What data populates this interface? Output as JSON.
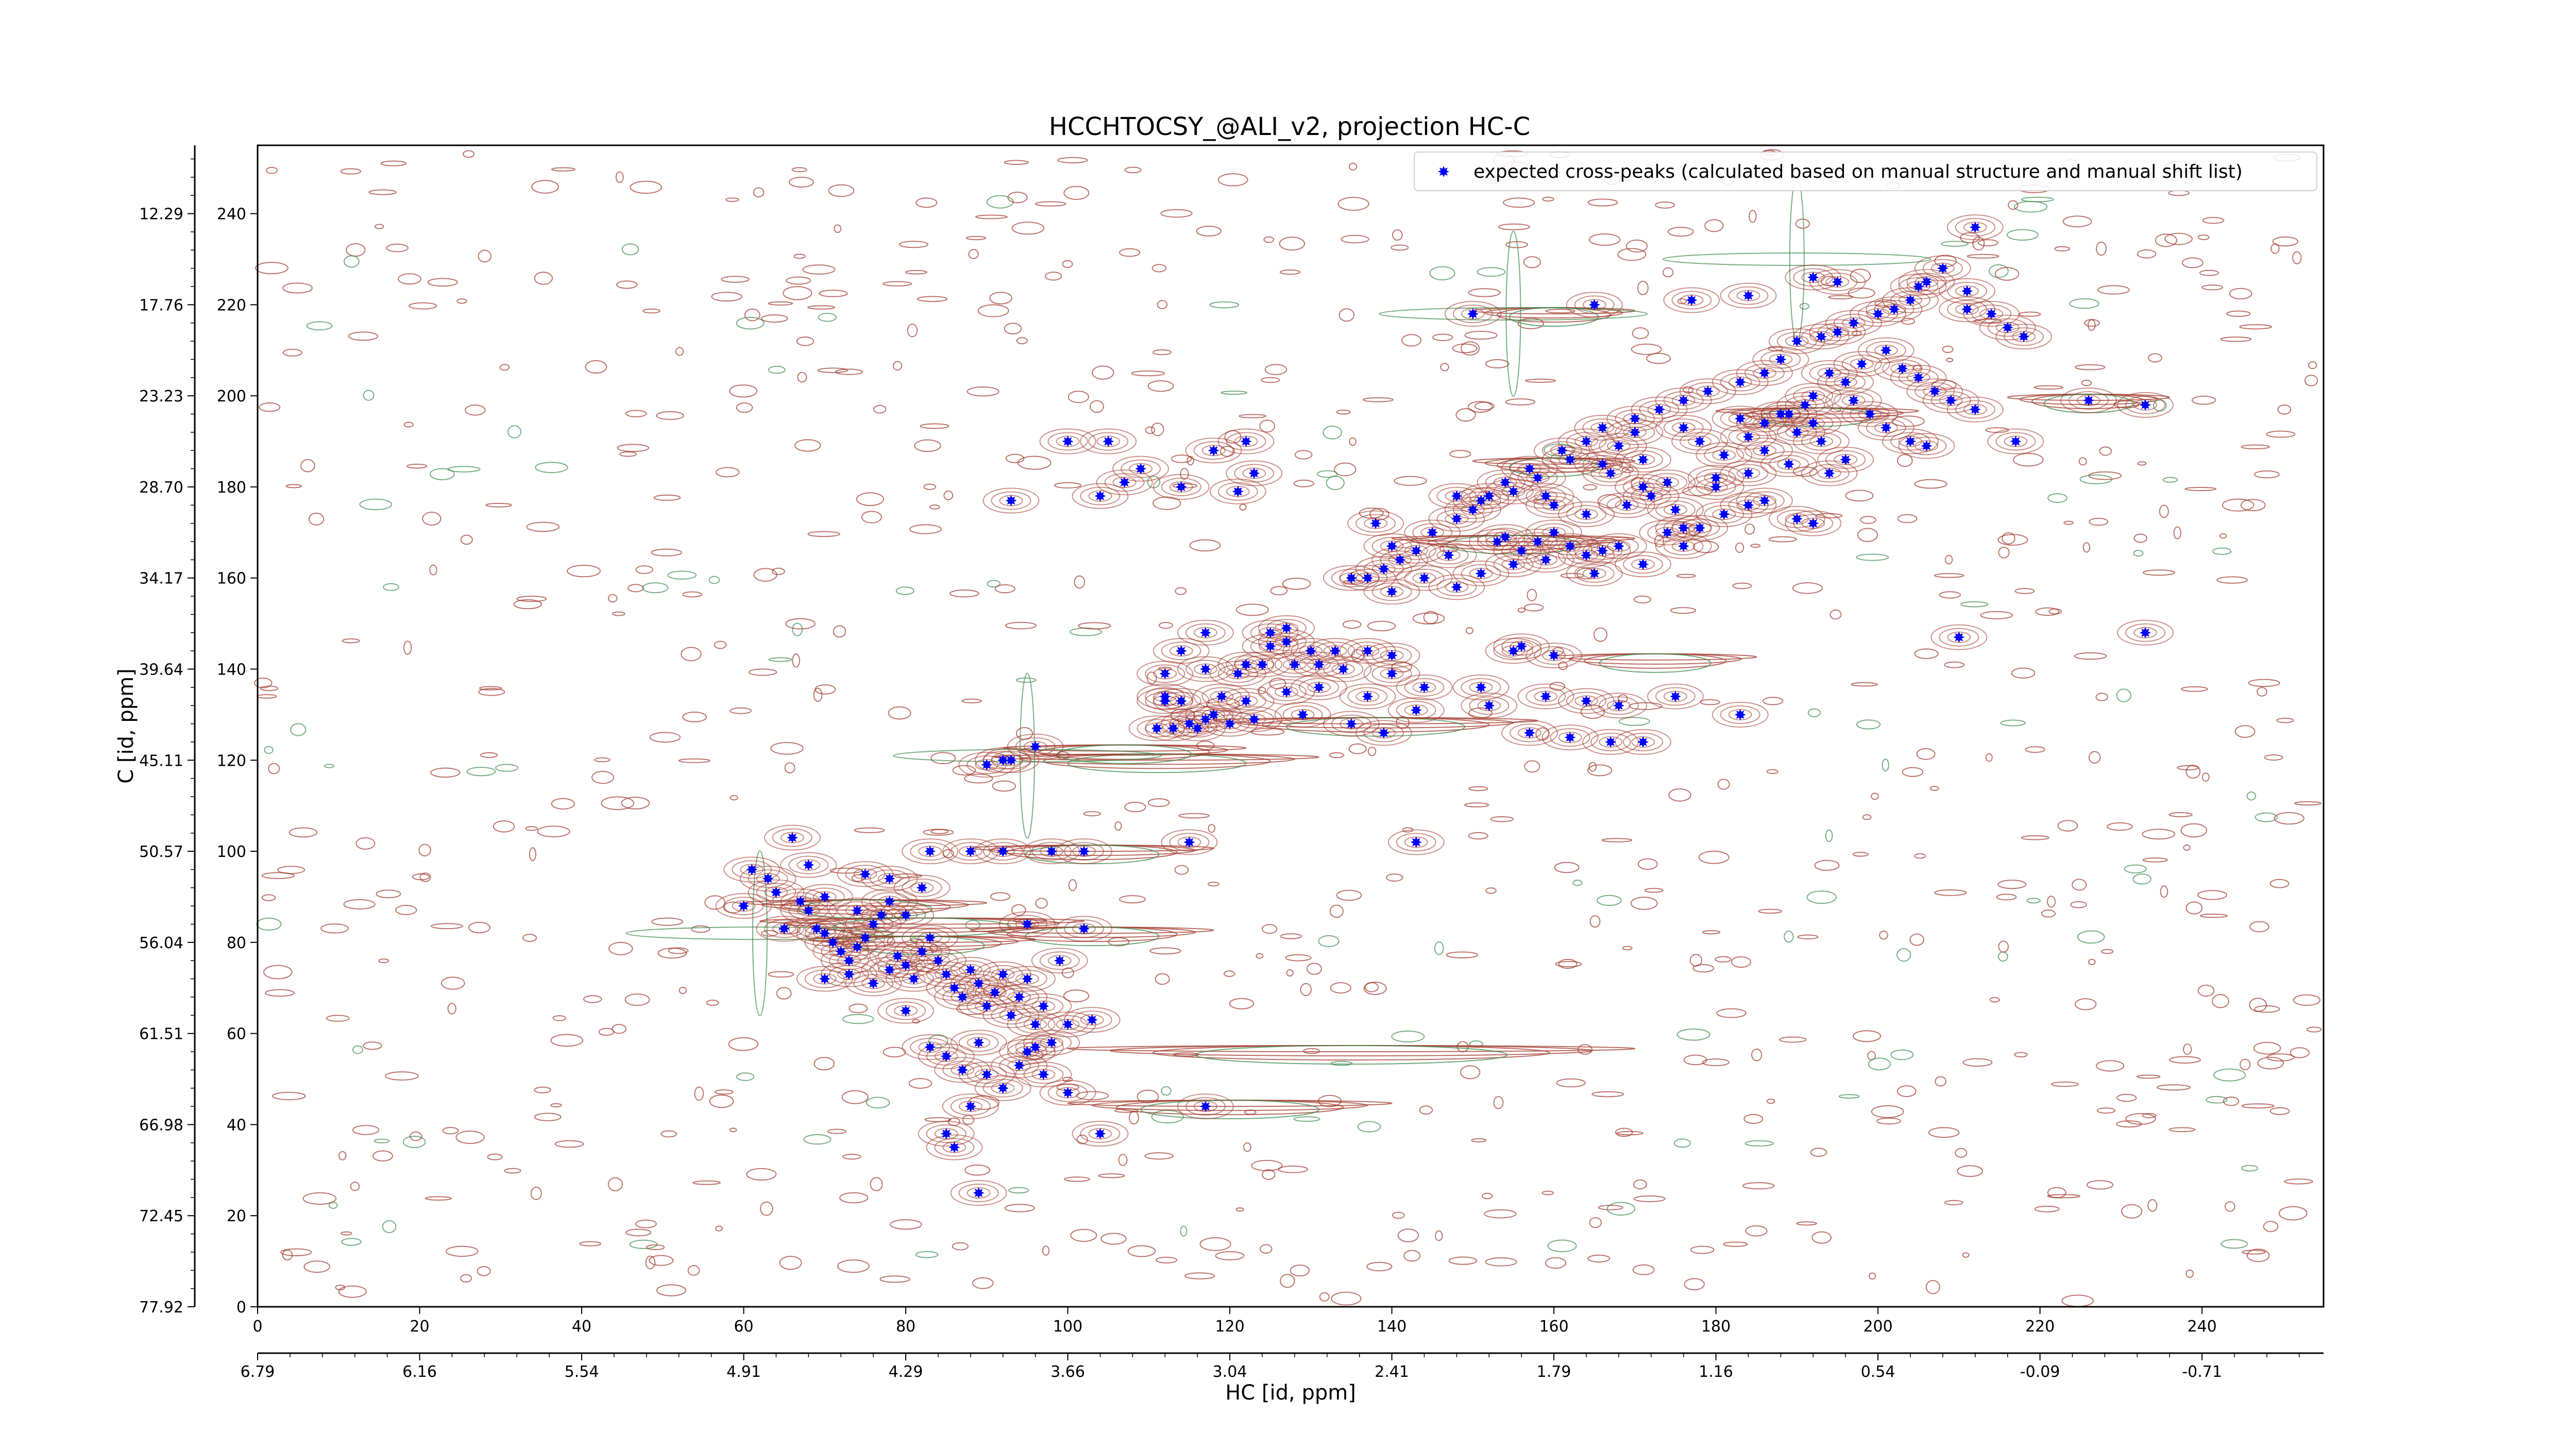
{
  "chart_data": {
    "type": "scatter",
    "title": "HCCHTOCSY_@ALI_v2, projection HC-C",
    "xlabel": "HC [id, ppm]",
    "ylabel": "C [id, ppm]",
    "xlim": [
      0,
      255
    ],
    "ylim": [
      0,
      255
    ],
    "x_ticks_index": [
      "0",
      "20",
      "40",
      "60",
      "80",
      "100",
      "120",
      "140",
      "160",
      "180",
      "200",
      "220",
      "240"
    ],
    "x_ticks_ppm": [
      "6.79",
      "6.16",
      "5.54",
      "4.91",
      "4.29",
      "3.66",
      "3.04",
      "2.41",
      "1.79",
      "1.16",
      "0.54",
      "-0.09",
      "-0.71"
    ],
    "y_ticks_index": [
      "0",
      "20",
      "40",
      "60",
      "80",
      "100",
      "120",
      "140",
      "160",
      "180",
      "200",
      "220",
      "240"
    ],
    "y_ticks_ppm": [
      "77.92",
      "72.45",
      "66.98",
      "61.51",
      "56.04",
      "50.57",
      "45.11",
      "39.64",
      "34.17",
      "28.70",
      "23.23",
      "17.76",
      "12.29"
    ],
    "legend": {
      "position": "top-right",
      "label": "expected cross-peaks (calculated based on manual structure and manual shift list)"
    },
    "colors": {
      "positive_contour": "#a0392b",
      "negative_contour": "#3e8b4e",
      "marker": "#0000ff"
    },
    "series": [
      {
        "name": "expected cross-peaks (calculated based on manual structure and manual shift list)",
        "points": [
          [
            60,
            88
          ],
          [
            64,
            91
          ],
          [
            65,
            83
          ],
          [
            67,
            89
          ],
          [
            68,
            87
          ],
          [
            69,
            83
          ],
          [
            70,
            82
          ],
          [
            71,
            80
          ],
          [
            72,
            78
          ],
          [
            73,
            76
          ],
          [
            74,
            79
          ],
          [
            75,
            81
          ],
          [
            76,
            84
          ],
          [
            77,
            86
          ],
          [
            78,
            89
          ],
          [
            78,
            74
          ],
          [
            79,
            77
          ],
          [
            80,
            75
          ],
          [
            81,
            72
          ],
          [
            82,
            78
          ],
          [
            83,
            81
          ],
          [
            84,
            76
          ],
          [
            85,
            73
          ],
          [
            86,
            70
          ],
          [
            87,
            68
          ],
          [
            88,
            74
          ],
          [
            89,
            71
          ],
          [
            90,
            66
          ],
          [
            91,
            69
          ],
          [
            92,
            73
          ],
          [
            93,
            64
          ],
          [
            94,
            68
          ],
          [
            95,
            72
          ],
          [
            96,
            62
          ],
          [
            97,
            66
          ],
          [
            98,
            58
          ],
          [
            99,
            76
          ],
          [
            100,
            62
          ],
          [
            103,
            63
          ],
          [
            70,
            72
          ],
          [
            73,
            73
          ],
          [
            76,
            71
          ],
          [
            80,
            65
          ],
          [
            83,
            57
          ],
          [
            85,
            55
          ],
          [
            87,
            52
          ],
          [
            89,
            58
          ],
          [
            90,
            51
          ],
          [
            92,
            48
          ],
          [
            94,
            53
          ],
          [
            95,
            56
          ],
          [
            96,
            57
          ],
          [
            97,
            51
          ],
          [
            100,
            47
          ],
          [
            88,
            44
          ],
          [
            85,
            38
          ],
          [
            86,
            35
          ],
          [
            89,
            25
          ],
          [
            104,
            38
          ],
          [
            117,
            44
          ],
          [
            61,
            96
          ],
          [
            63,
            94
          ],
          [
            70,
            90
          ],
          [
            74,
            87
          ],
          [
            80,
            86
          ],
          [
            95,
            84
          ],
          [
            102,
            83
          ],
          [
            66,
            103
          ],
          [
            68,
            97
          ],
          [
            75,
            95
          ],
          [
            78,
            94
          ],
          [
            82,
            92
          ],
          [
            83,
            100
          ],
          [
            88,
            100
          ],
          [
            92,
            100
          ],
          [
            98,
            100
          ],
          [
            102,
            100
          ],
          [
            115,
            102
          ],
          [
            143,
            102
          ],
          [
            90,
            119
          ],
          [
            92,
            120
          ],
          [
            93,
            120
          ],
          [
            96,
            123
          ],
          [
            111,
            127
          ],
          [
            113,
            127
          ],
          [
            115,
            128
          ],
          [
            116,
            127
          ],
          [
            117,
            129
          ],
          [
            120,
            128
          ],
          [
            123,
            129
          ],
          [
            129,
            130
          ],
          [
            135,
            128
          ],
          [
            139,
            126
          ],
          [
            143,
            131
          ],
          [
            152,
            132
          ],
          [
            157,
            126
          ],
          [
            162,
            125
          ],
          [
            167,
            124
          ],
          [
            171,
            124
          ],
          [
            118,
            130
          ],
          [
            112,
            134
          ],
          [
            112,
            133
          ],
          [
            114,
            133
          ],
          [
            119,
            134
          ],
          [
            122,
            133
          ],
          [
            127,
            135
          ],
          [
            131,
            136
          ],
          [
            137,
            134
          ],
          [
            144,
            136
          ],
          [
            151,
            136
          ],
          [
            159,
            134
          ],
          [
            164,
            133
          ],
          [
            168,
            132
          ],
          [
            175,
            134
          ],
          [
            183,
            130
          ],
          [
            112,
            139
          ],
          [
            114,
            144
          ],
          [
            117,
            140
          ],
          [
            121,
            139
          ],
          [
            122,
            141
          ],
          [
            124,
            141
          ],
          [
            125,
            145
          ],
          [
            127,
            146
          ],
          [
            128,
            141
          ],
          [
            130,
            144
          ],
          [
            131,
            141
          ],
          [
            133,
            144
          ],
          [
            134,
            140
          ],
          [
            137,
            144
          ],
          [
            140,
            139
          ],
          [
            117,
            148
          ],
          [
            125,
            148
          ],
          [
            127,
            149
          ],
          [
            140,
            143
          ],
          [
            155,
            144
          ],
          [
            156,
            145
          ],
          [
            160,
            143
          ],
          [
            210,
            147
          ],
          [
            233,
            148
          ],
          [
            135,
            160
          ],
          [
            137,
            160
          ],
          [
            139,
            162
          ],
          [
            140,
            157
          ],
          [
            141,
            164
          ],
          [
            143,
            166
          ],
          [
            144,
            160
          ],
          [
            147,
            165
          ],
          [
            148,
            158
          ],
          [
            151,
            161
          ],
          [
            153,
            168
          ],
          [
            155,
            163
          ],
          [
            156,
            166
          ],
          [
            158,
            168
          ],
          [
            159,
            164
          ],
          [
            162,
            167
          ],
          [
            164,
            165
          ],
          [
            165,
            161
          ],
          [
            166,
            166
          ],
          [
            168,
            167
          ],
          [
            171,
            163
          ],
          [
            174,
            170
          ],
          [
            176,
            167
          ],
          [
            178,
            171
          ],
          [
            181,
            174
          ],
          [
            184,
            176
          ],
          [
            186,
            177
          ],
          [
            190,
            173
          ],
          [
            192,
            172
          ],
          [
            140,
            167
          ],
          [
            145,
            170
          ],
          [
            148,
            173
          ],
          [
            150,
            175
          ],
          [
            152,
            178
          ],
          [
            154,
            181
          ],
          [
            155,
            179
          ],
          [
            157,
            184
          ],
          [
            158,
            182
          ],
          [
            159,
            178
          ],
          [
            160,
            176
          ],
          [
            161,
            188
          ],
          [
            162,
            186
          ],
          [
            164,
            190
          ],
          [
            166,
            185
          ],
          [
            167,
            183
          ],
          [
            168,
            189
          ],
          [
            170,
            192
          ],
          [
            171,
            186
          ],
          [
            172,
            178
          ],
          [
            174,
            181
          ],
          [
            176,
            193
          ],
          [
            178,
            190
          ],
          [
            180,
            182
          ],
          [
            181,
            187
          ],
          [
            183,
            195
          ],
          [
            184,
            191
          ],
          [
            186,
            194
          ],
          [
            188,
            196
          ],
          [
            189,
            185
          ],
          [
            191,
            198
          ],
          [
            192,
            194
          ],
          [
            193,
            190
          ],
          [
            194,
            183
          ],
          [
            196,
            186
          ],
          [
            197,
            199
          ],
          [
            199,
            196
          ],
          [
            201,
            193
          ],
          [
            204,
            190
          ],
          [
            206,
            189
          ],
          [
            212,
            197
          ],
          [
            217,
            190
          ],
          [
            233,
            198
          ],
          [
            226,
            199
          ],
          [
            122,
            190
          ],
          [
            118,
            188
          ],
          [
            114,
            180
          ],
          [
            104,
            178
          ],
          [
            107,
            181
          ],
          [
            109,
            184
          ],
          [
            100,
            190
          ],
          [
            105,
            190
          ],
          [
            93,
            177
          ],
          [
            121,
            179
          ],
          [
            123,
            183
          ],
          [
            138,
            172
          ],
          [
            148,
            178
          ],
          [
            151,
            177
          ],
          [
            154,
            169
          ],
          [
            160,
            170
          ],
          [
            164,
            174
          ],
          [
            169,
            176
          ],
          [
            171,
            180
          ],
          [
            175,
            175
          ],
          [
            176,
            171
          ],
          [
            180,
            180
          ],
          [
            184,
            183
          ],
          [
            186,
            188
          ],
          [
            189,
            196
          ],
          [
            190,
            192
          ],
          [
            192,
            200
          ],
          [
            194,
            205
          ],
          [
            196,
            203
          ],
          [
            198,
            207
          ],
          [
            201,
            210
          ],
          [
            203,
            206
          ],
          [
            205,
            204
          ],
          [
            207,
            201
          ],
          [
            209,
            199
          ],
          [
            166,
            193
          ],
          [
            170,
            195
          ],
          [
            173,
            197
          ],
          [
            176,
            199
          ],
          [
            179,
            201
          ],
          [
            183,
            203
          ],
          [
            186,
            205
          ],
          [
            188,
            208
          ],
          [
            190,
            212
          ],
          [
            193,
            213
          ],
          [
            195,
            214
          ],
          [
            197,
            216
          ],
          [
            200,
            218
          ],
          [
            202,
            219
          ],
          [
            204,
            221
          ],
          [
            206,
            225
          ],
          [
            208,
            228
          ],
          [
            211,
            223
          ],
          [
            214,
            218
          ],
          [
            216,
            215
          ],
          [
            218,
            213
          ],
          [
            150,
            218
          ],
          [
            165,
            220
          ],
          [
            177,
            221
          ],
          [
            184,
            222
          ],
          [
            192,
            226
          ],
          [
            195,
            225
          ],
          [
            205,
            224
          ],
          [
            211,
            219
          ],
          [
            212,
            237
          ]
        ]
      }
    ]
  }
}
